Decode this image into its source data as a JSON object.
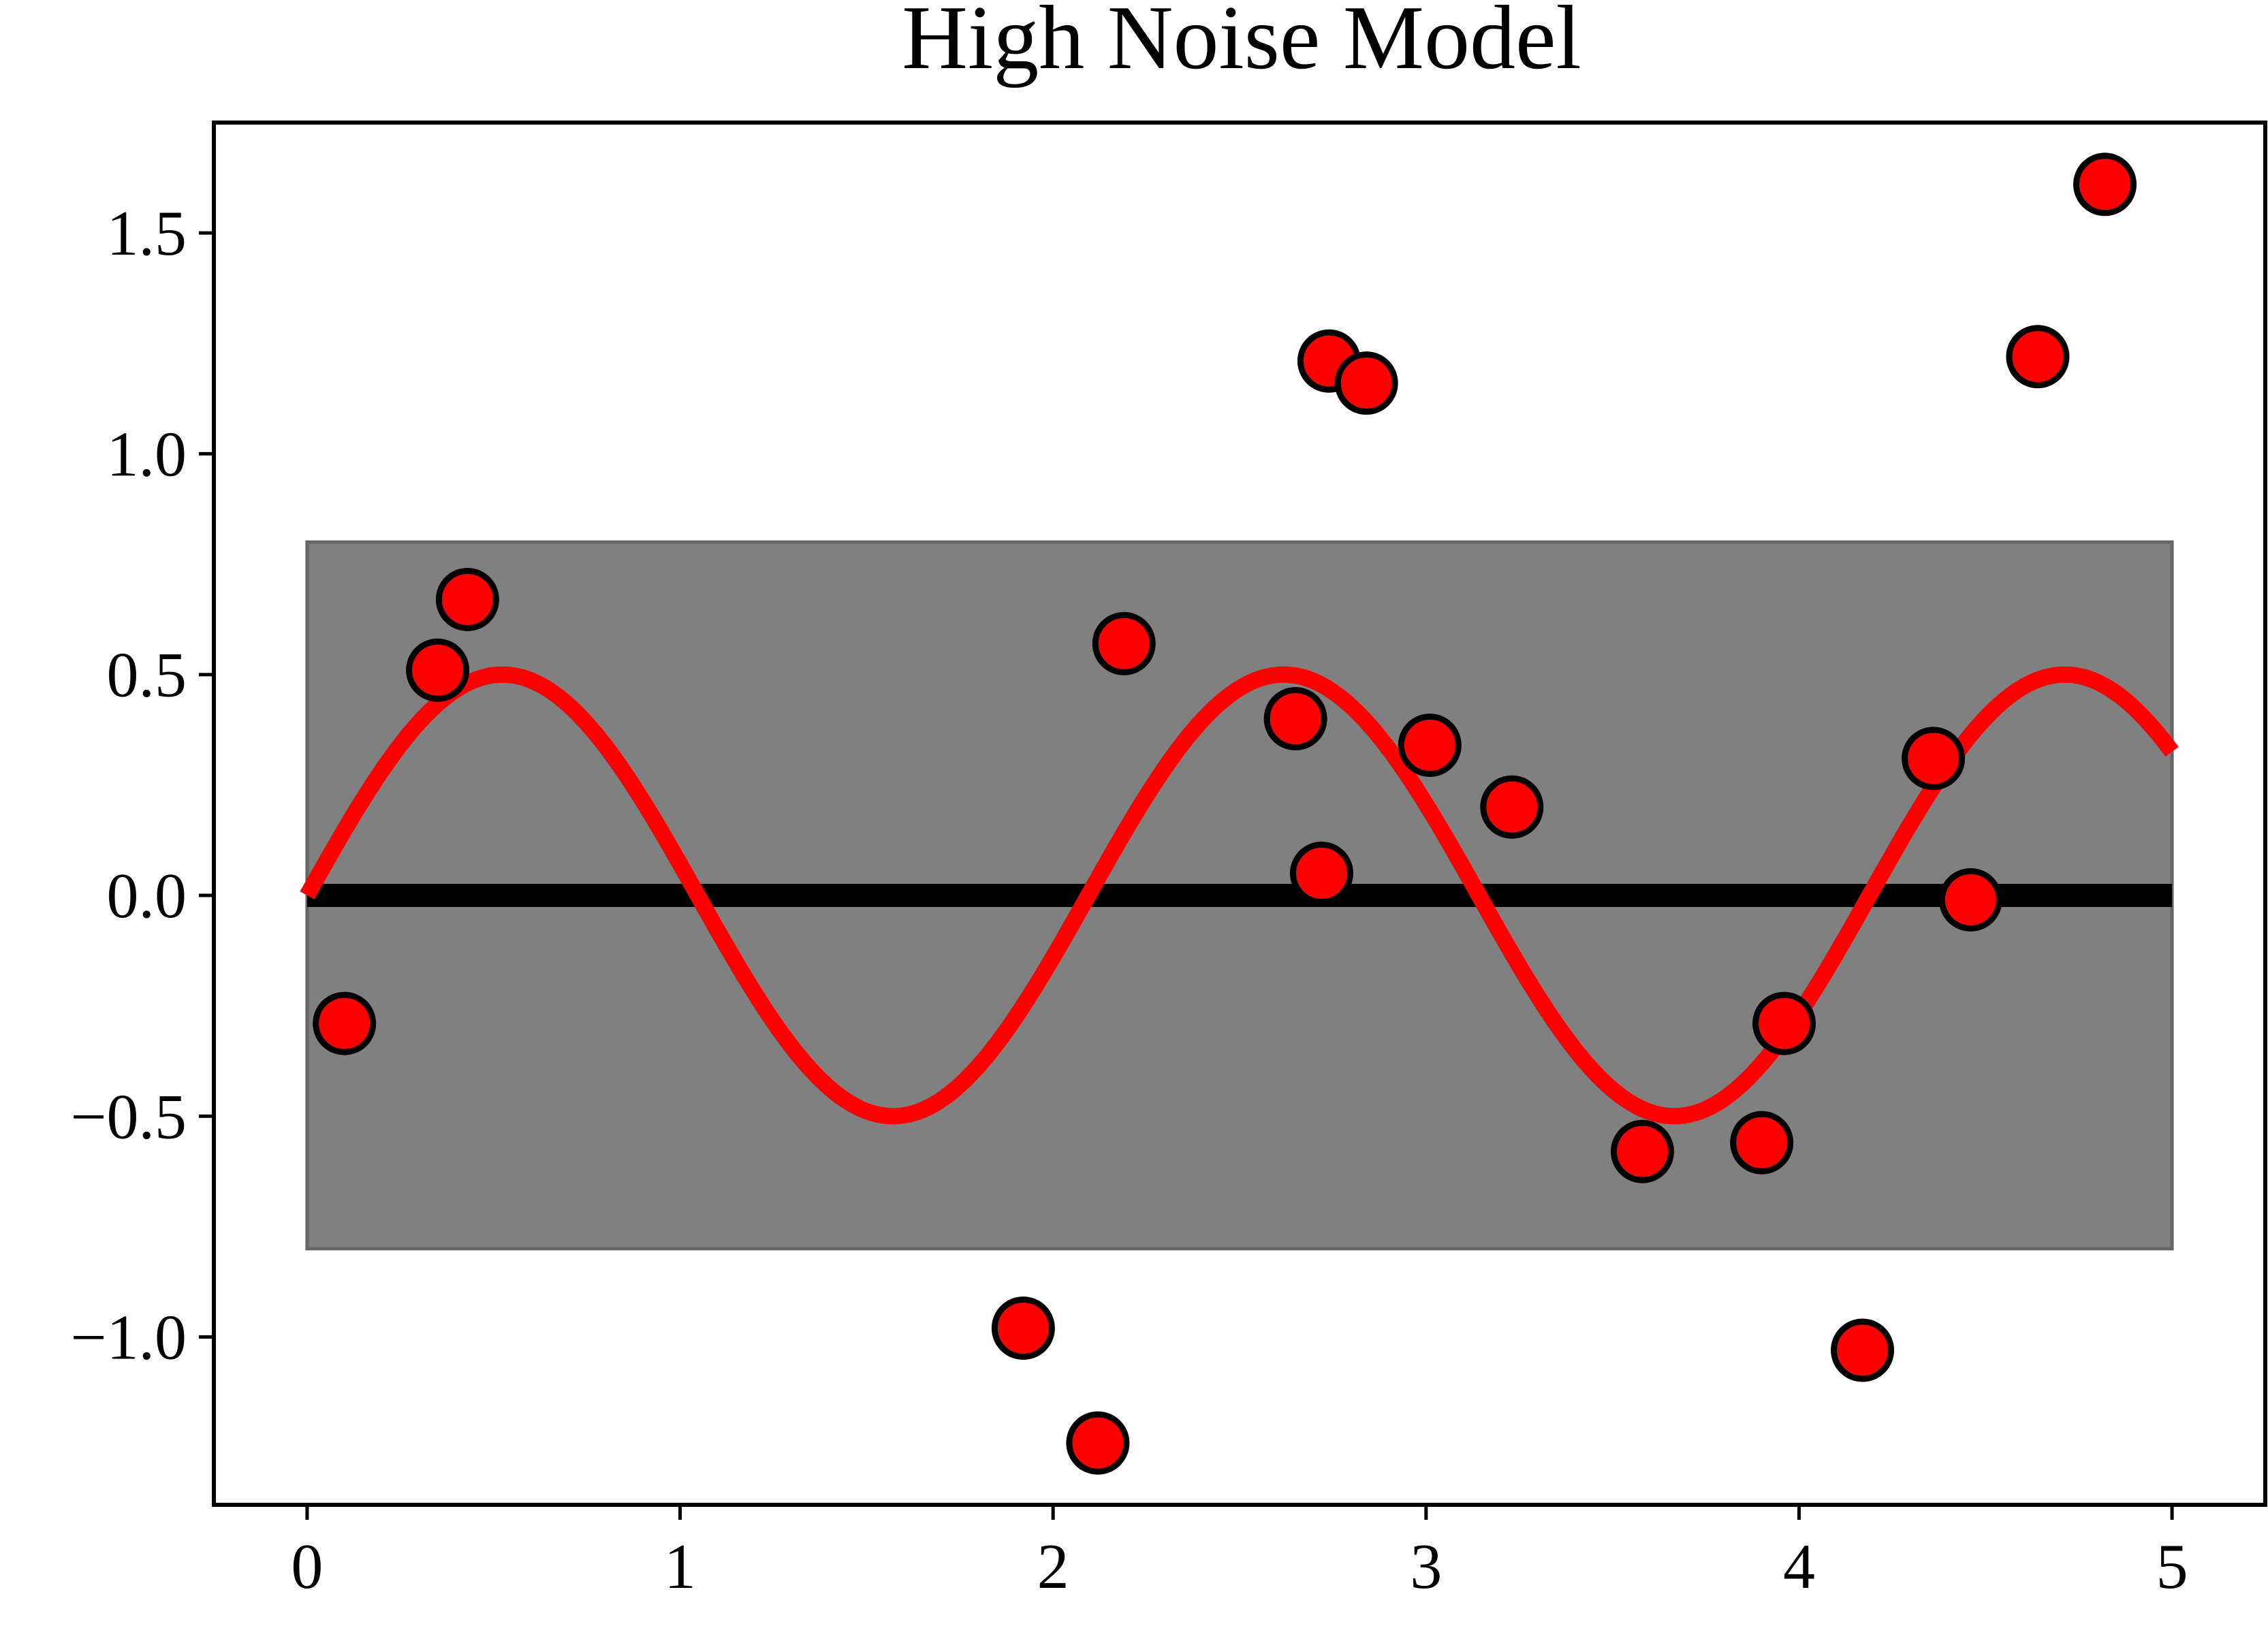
{
  "chart_data": {
    "type": "scatter",
    "title": "High Noise Model",
    "xlabel": "",
    "ylabel": "",
    "xlim": [
      -0.25,
      5.25
    ],
    "ylim": [
      -1.38,
      1.75
    ],
    "x_ticks": [
      0,
      1,
      2,
      3,
      4,
      5
    ],
    "x_tick_labels": [
      "0",
      "1",
      "2",
      "3",
      "4",
      "5"
    ],
    "y_ticks": [
      -1.0,
      -0.5,
      0.0,
      0.5,
      1.0,
      1.5
    ],
    "y_tick_labels": [
      "−1.0",
      "−0.5",
      "0.0",
      "0.5",
      "1.0",
      "1.5"
    ],
    "grid": false,
    "legend": "none",
    "band": {
      "x": [
        0,
        5
      ],
      "y": [
        -0.8,
        0.8
      ],
      "color": "#808080"
    },
    "baseline": {
      "x": [
        0,
        5
      ],
      "y": 0,
      "color": "#000000"
    },
    "curve": {
      "function": "0.5 * sin(3 * x)",
      "amplitude": 0.5,
      "frequency": 3,
      "x_range": [
        0,
        5
      ],
      "color": "#ff0000"
    },
    "points": {
      "x": [
        0.1,
        0.35,
        0.43,
        1.92,
        2.12,
        2.19,
        2.65,
        2.72,
        2.74,
        2.84,
        3.01,
        3.23,
        3.58,
        3.9,
        3.96,
        4.17,
        4.36,
        4.46,
        4.64,
        4.82
      ],
      "y": [
        -0.29,
        0.51,
        0.67,
        -0.98,
        -1.24,
        0.57,
        0.4,
        0.05,
        1.21,
        1.16,
        0.34,
        0.2,
        -0.58,
        -0.56,
        -0.29,
        -1.03,
        0.31,
        -0.01,
        1.22,
        1.61
      ],
      "fill": "#ff0000",
      "edge": "#000000"
    }
  }
}
